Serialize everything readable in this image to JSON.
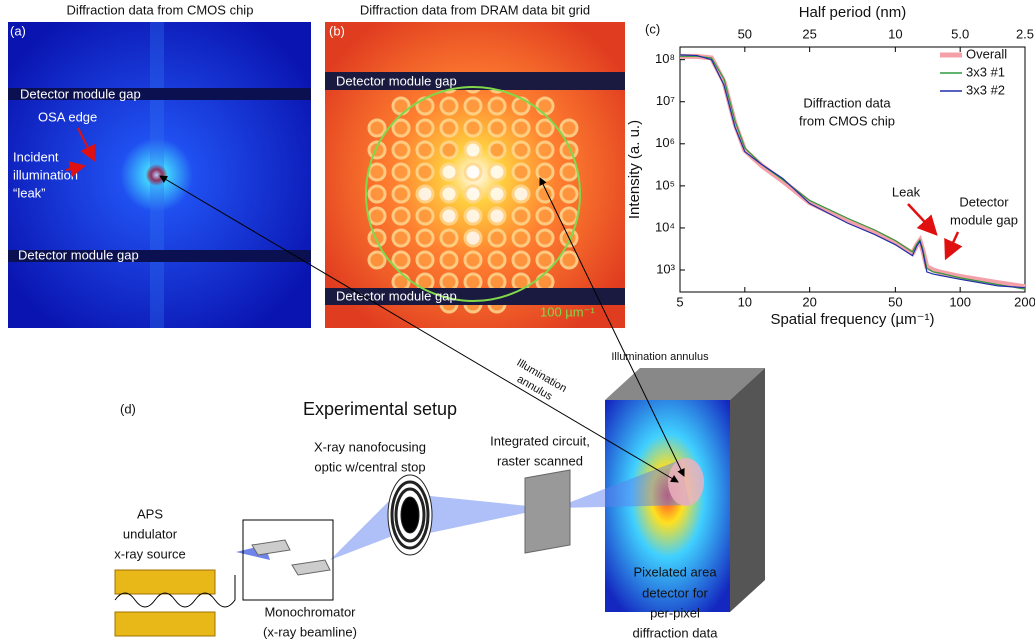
{
  "panel_a": {
    "label": "(a)",
    "title": "Diffraction data from CMOS chip",
    "gap_top": "Detector module gap",
    "gap_bottom": "Detector module gap",
    "osa_edge": "OSA edge",
    "leak_lines": [
      "Incident",
      "illumination",
      "“leak”"
    ]
  },
  "panel_b": {
    "label": "(b)",
    "title": "Diffraction data from DRAM data bit grid",
    "gap_top": "Detector module gap",
    "gap_bottom": "Detector module gap",
    "ring_label": "100 µm⁻¹"
  },
  "chart_data": {
    "type": "line",
    "panel_label": "(c)",
    "xlabel": "Spatial frequency (µm⁻¹)",
    "ylabel": "Intensity (a. u.)",
    "x2label": "Half period (nm)",
    "annotation_lines": [
      "Diffraction data",
      "from CMOS chip"
    ],
    "leak_label": "Leak",
    "gap_label_lines": [
      "Detector",
      "module gap"
    ],
    "xscale": "log",
    "yscale": "log",
    "legend": "upper right",
    "x": [
      5,
      6,
      7,
      8,
      9,
      10,
      12,
      15,
      20,
      30,
      40,
      50,
      60,
      63,
      65,
      67,
      70,
      75,
      80,
      100,
      150,
      200
    ],
    "xlim": [
      5,
      200
    ],
    "xticks": [
      5,
      10,
      20,
      50,
      100,
      200
    ],
    "ylim": [
      300,
      200000000
    ],
    "yticks": [
      {
        "value": 1000,
        "label": "10³"
      },
      {
        "value": 10000,
        "label": "10⁴"
      },
      {
        "value": 100000,
        "label": "10⁵"
      },
      {
        "value": 1000000,
        "label": "10⁶"
      },
      {
        "value": 10000000,
        "label": "10⁷"
      },
      {
        "value": 100000000,
        "label": "10⁸"
      }
    ],
    "x2lim": [
      100,
      2.5
    ],
    "x2ticks": [
      50,
      25,
      10,
      {
        "value": 5,
        "label": "5.0"
      },
      2.5
    ],
    "series": [
      {
        "name": "Overall",
        "color": "#f4a0a8",
        "values": [
          120000000,
          120000000,
          110000000,
          30000000,
          3000000,
          700000,
          300000,
          130000,
          40000,
          15000,
          8000,
          4500,
          2500,
          4000,
          5000,
          3000,
          1200,
          1000,
          900,
          700,
          500,
          400
        ]
      },
      {
        "name": "3x3 #1",
        "color": "#2e9a3a",
        "values": [
          120000000,
          120000000,
          110000000,
          35000000,
          3500000,
          800000,
          320000,
          140000,
          45000,
          17000,
          9000,
          5000,
          2700,
          4200,
          5200,
          3200,
          1100,
          900,
          850,
          650,
          450,
          350
        ]
      },
      {
        "name": "3x3 #2",
        "color": "#1f2fa8",
        "values": [
          130000000,
          125000000,
          100000000,
          25000000,
          2500000,
          650000,
          320000,
          150000,
          38000,
          13000,
          7000,
          4000,
          2200,
          3800,
          4800,
          2800,
          900,
          800,
          750,
          600,
          420,
          380
        ]
      }
    ]
  },
  "panel_d": {
    "label": "(d)",
    "title": "Experimental setup",
    "source_lines": [
      "APS",
      "undulator",
      "x-ray source"
    ],
    "mono_lines": [
      "Monochromator",
      "(x-ray beamline)"
    ],
    "optic_lines": [
      "X-ray nanofocusing",
      "optic w/central stop"
    ],
    "ic_lines": [
      "Integrated circuit,",
      "raster scanned"
    ],
    "detector_lines": [
      "Pixelated area",
      "detector for",
      "per-pixel",
      "diffraction data"
    ],
    "annulus_left_lines": [
      "Illumination",
      "annulus"
    ],
    "annulus_right": "Illumination annulus"
  }
}
